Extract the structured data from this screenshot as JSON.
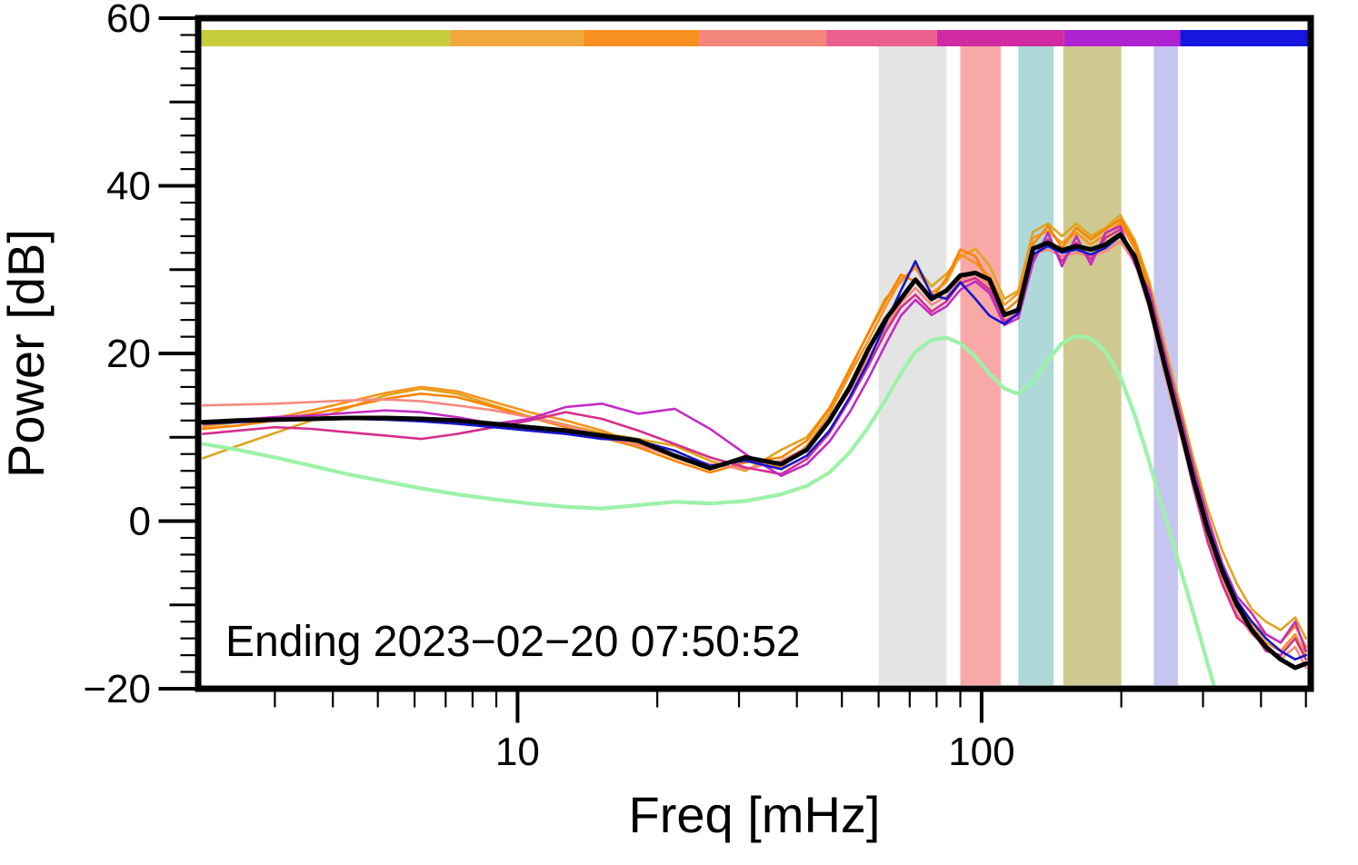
{
  "chart_data": {
    "type": "line",
    "title": "",
    "xlabel": "Freq [mHz]",
    "ylabel": "Power [dB]",
    "annotation": "Ending 2023−02−20 07:50:52",
    "x_axis": {
      "scale": "log",
      "range": [
        2.05,
        512
      ],
      "major_ticks": [
        10,
        100
      ],
      "major_tick_labels": [
        "10",
        "100"
      ]
    },
    "y_axis": {
      "range": [
        -20,
        60
      ],
      "major_step": 20,
      "mid_step": 10,
      "minor_step": 2,
      "major_ticks": [
        -20,
        0,
        20,
        40,
        60
      ],
      "major_tick_labels": [
        "−20",
        "0",
        "20",
        "40",
        "60"
      ]
    },
    "bands": [
      {
        "name": "gray-band",
        "range": [
          60,
          84
        ],
        "color": "#e4e4e4"
      },
      {
        "name": "red-band",
        "range": [
          90,
          110
        ],
        "color": "#f9a8a8"
      },
      {
        "name": "teal-band",
        "range": [
          120,
          143
        ],
        "color": "#afd9d9"
      },
      {
        "name": "olive-band",
        "range": [
          150,
          200
        ],
        "color": "#cfc98f"
      },
      {
        "name": "lavender-band",
        "range": [
          235,
          265
        ],
        "color": "#c5c5f0"
      }
    ],
    "colorbar_segments": [
      {
        "span": [
          0.0,
          0.225
        ],
        "color": "#c6cc3a"
      },
      {
        "span": [
          0.225,
          0.345
        ],
        "color": "#f0a73c"
      },
      {
        "span": [
          0.345,
          0.45
        ],
        "color": "#f89020"
      },
      {
        "span": [
          0.45,
          0.565
        ],
        "color": "#f5867c"
      },
      {
        "span": [
          0.565,
          0.665
        ],
        "color": "#ea5f8d"
      },
      {
        "span": [
          0.665,
          0.78
        ],
        "color": "#d02ba0"
      },
      {
        "span": [
          0.78,
          0.885
        ],
        "color": "#ae22cf"
      },
      {
        "span": [
          0.885,
          1.0
        ],
        "color": "#1616e0"
      }
    ],
    "x": [
      2.1,
      2.5,
      3,
      3.6,
      4.3,
      5.2,
      6.2,
      7.4,
      8.9,
      10.6,
      12.7,
      15.2,
      18.2,
      21.8,
      26,
      31,
      37,
      42,
      47,
      52,
      57,
      62,
      67,
      72,
      78,
      84,
      90,
      97,
      104,
      112,
      120,
      129,
      139,
      149,
      160,
      172,
      185,
      199,
      214,
      230,
      247,
      266,
      286,
      307,
      330,
      355,
      382,
      410,
      441,
      474,
      500
    ],
    "series": [
      {
        "name": "goldenrod",
        "color": "#dfa41e",
        "width": 2.6,
        "values": [
          7.5,
          9,
          10.5,
          12,
          13.5,
          15,
          15.8,
          15.2,
          13.8,
          12.5,
          11.5,
          10.5,
          9.8,
          9,
          7.2,
          6,
          8.5,
          10,
          13.5,
          18,
          22.5,
          26.5,
          28.5,
          30.5,
          28,
          29.5,
          31.5,
          32.5,
          30.5,
          26.5,
          27.5,
          34.5,
          35.5,
          34,
          35.5,
          34,
          35,
          36.5,
          33.5,
          28.5,
          21.5,
          14.5,
          7.5,
          1.5,
          -3.5,
          -7.5,
          -10.5,
          -12,
          -13,
          -11.5,
          -14
        ]
      },
      {
        "name": "orange",
        "color": "#f7941e",
        "width": 2.6,
        "values": [
          11.3,
          11.8,
          12.3,
          13.2,
          14.2,
          15.3,
          16,
          15.5,
          14.2,
          13,
          12,
          10.8,
          9.2,
          7.6,
          6.2,
          7.8,
          6.4,
          9,
          12.8,
          17.5,
          21.5,
          25.5,
          28.8,
          30.2,
          27.2,
          28.5,
          31.8,
          30.8,
          29.2,
          25.8,
          27.2,
          33.8,
          34.6,
          33.2,
          34.4,
          33,
          34.2,
          35.6,
          32.4,
          27,
          19.5,
          12,
          5,
          -1.5,
          -6.5,
          -10,
          -12.5,
          -14.5,
          -15.5,
          -13.5,
          -16
        ]
      },
      {
        "name": "tangerine",
        "color": "#fb8300",
        "width": 2.6,
        "values": [
          11,
          11.4,
          12,
          12.8,
          13.6,
          14.6,
          15.2,
          14.8,
          13.6,
          12.4,
          11.2,
          10,
          8.8,
          7.2,
          5.8,
          7,
          7.6,
          9.6,
          13.4,
          18.2,
          22.4,
          26.2,
          29.4,
          28.6,
          26.4,
          29,
          32.4,
          31.6,
          28.4,
          25,
          26.4,
          33,
          35.2,
          32.6,
          35,
          33.6,
          34.8,
          36,
          33,
          27.8,
          20.5,
          13,
          6,
          -0.5,
          -5.5,
          -9.5,
          -12,
          -13.5,
          -14.5,
          -12.5,
          -15
        ]
      },
      {
        "name": "salmon",
        "color": "#f58a80",
        "width": 2.6,
        "values": [
          13.8,
          13.9,
          14,
          14.2,
          14.4,
          14.5,
          14.3,
          13.8,
          13.2,
          12.4,
          11.4,
          10.2,
          9,
          7.8,
          6.8,
          6.2,
          7.2,
          8.8,
          12,
          15.5,
          19.5,
          23,
          26,
          27.8,
          25.8,
          26.8,
          28.8,
          29.6,
          28,
          24,
          24.8,
          31.8,
          32.4,
          31.6,
          32,
          31.6,
          32.2,
          33.4,
          30.8,
          25.2,
          18,
          11,
          4.5,
          -2,
          -7,
          -11,
          -13.5,
          -15,
          -16.5,
          -15,
          -17.5
        ]
      },
      {
        "name": "crimson",
        "color": "#d62e8c",
        "width": 2.6,
        "values": [
          10.4,
          10.8,
          11.2,
          11,
          10.6,
          10.2,
          9.8,
          10.4,
          11.2,
          12,
          13,
          12.2,
          10.8,
          9.2,
          7.6,
          6.4,
          5.6,
          7.4,
          10.5,
          14.5,
          18.5,
          22.5,
          25.5,
          27,
          25,
          26.2,
          28.4,
          29,
          27.6,
          23.8,
          24.6,
          31.4,
          33.6,
          31,
          33.2,
          31.2,
          33.8,
          34.8,
          31.2,
          26,
          18.5,
          11.5,
          4,
          -2.5,
          -7.5,
          -11.5,
          -13,
          -15.5,
          -16,
          -14,
          -16.5
        ]
      },
      {
        "name": "magenta",
        "color": "#c32cc3",
        "width": 2.6,
        "values": [
          11.9,
          12.1,
          12.4,
          12.6,
          12.9,
          13.2,
          13,
          12.4,
          11.6,
          12.2,
          13.6,
          14,
          12.8,
          13.4,
          11,
          8,
          5.4,
          6.8,
          9.5,
          13,
          17,
          21,
          24.5,
          26.4,
          24.6,
          25.6,
          27.6,
          28.6,
          27.2,
          23.4,
          24.2,
          30.8,
          34.4,
          30.4,
          34,
          30.6,
          34.4,
          35.2,
          30.6,
          27.5,
          20.5,
          13.5,
          6.5,
          0.5,
          -5,
          -9,
          -11,
          -13.5,
          -14.5,
          -12,
          -15.5
        ]
      },
      {
        "name": "blue",
        "color": "#1515cc",
        "width": 2.6,
        "values": [
          11.6,
          11.8,
          12,
          12.1,
          12.2,
          12.1,
          11.9,
          11.6,
          11.2,
          10.8,
          10.4,
          9.8,
          9.6,
          8.4,
          6.6,
          7.2,
          6.2,
          7.8,
          10.8,
          14.8,
          19,
          23.5,
          27.5,
          31,
          27,
          26.5,
          28.5,
          26.5,
          24.5,
          23.5,
          24.8,
          31.8,
          32.8,
          32,
          32.4,
          31.8,
          32.6,
          34,
          31.8,
          26.5,
          19.5,
          12.5,
          5.5,
          -0.5,
          -5.5,
          -9.5,
          -12,
          -14,
          -15.5,
          -16.5,
          -16
        ]
      },
      {
        "name": "pale-green",
        "color": "#9cf2a8",
        "width": 4.2,
        "values": [
          9.2,
          8.5,
          7.6,
          6.6,
          5.6,
          4.7,
          3.9,
          3.2,
          2.6,
          2.1,
          1.7,
          1.5,
          1.9,
          2.3,
          2.1,
          2.4,
          3.2,
          4.2,
          5.8,
          8.2,
          11.2,
          14.4,
          17.6,
          20.2,
          21.6,
          21.9,
          21.2,
          19.6,
          17.6,
          15.8,
          15.2,
          16.6,
          19.2,
          21.2,
          22.1,
          21.8,
          20.2,
          17.2,
          12.6,
          7,
          1,
          -5,
          -11,
          -17,
          -23,
          -28,
          -33,
          -37,
          -40,
          -43,
          -45
        ]
      },
      {
        "name": "mean-black",
        "color": "#000000",
        "width": 5,
        "values": [
          11.8,
          12,
          12.1,
          12.2,
          12.3,
          12.3,
          12.2,
          12,
          11.6,
          11.2,
          10.8,
          10.2,
          9.6,
          7.8,
          6.3,
          7.6,
          6.8,
          8.5,
          12,
          16,
          20.5,
          24,
          26.5,
          28.8,
          26.5,
          27.5,
          29.3,
          29.6,
          28.8,
          24.6,
          25.2,
          32.5,
          33.2,
          32.3,
          32.8,
          32.4,
          33,
          34.2,
          31.5,
          26,
          19,
          12,
          5,
          -1,
          -6,
          -10,
          -13,
          -15,
          -16.5,
          -17.5,
          -17
        ]
      }
    ]
  }
}
